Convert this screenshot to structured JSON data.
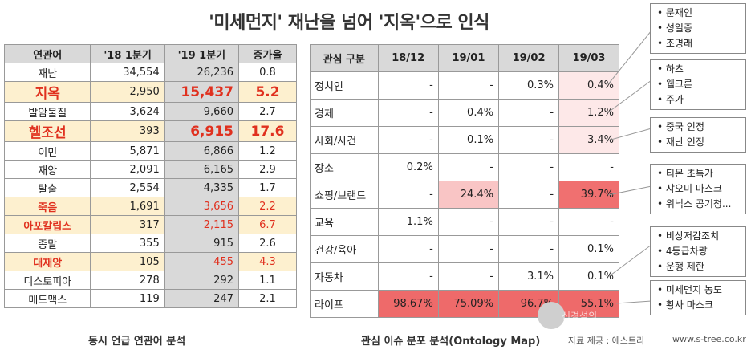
{
  "title": "'미세먼지' 재난을 넘어 '지옥'으로 인식",
  "left_table": {
    "headers": [
      "연관어",
      "'18 1분기",
      "'19 1분기",
      "증가율"
    ],
    "rows": [
      {
        "kw": "재난",
        "q18": "34,554",
        "q19": "26,236",
        "inc": "0.8"
      },
      {
        "kw": "지옥",
        "q18": "2,950",
        "q19": "15,437",
        "inc": "5.2"
      },
      {
        "kw": "발암물질",
        "q18": "3,624",
        "q19": "9,660",
        "inc": "2.7"
      },
      {
        "kw": "헬조선",
        "q18": "393",
        "q19": "6,915",
        "inc": "17.6"
      },
      {
        "kw": "이민",
        "q18": "5,871",
        "q19": "6,866",
        "inc": "1.2"
      },
      {
        "kw": "재앙",
        "q18": "2,091",
        "q19": "6,165",
        "inc": "2.9"
      },
      {
        "kw": "탈출",
        "q18": "2,554",
        "q19": "4,335",
        "inc": "1.7"
      },
      {
        "kw": "죽음",
        "q18": "1,691",
        "q19": "3,656",
        "inc": "2.2"
      },
      {
        "kw": "아포칼립스",
        "q18": "317",
        "q19": "2,115",
        "inc": "6.7"
      },
      {
        "kw": "종말",
        "q18": "355",
        "q19": "915",
        "inc": "2.6"
      },
      {
        "kw": "대재앙",
        "q18": "105",
        "q19": "455",
        "inc": "4.3"
      },
      {
        "kw": "디스토피아",
        "q18": "278",
        "q19": "292",
        "inc": "1.1"
      },
      {
        "kw": "매드맥스",
        "q18": "119",
        "q19": "247",
        "inc": "2.1"
      }
    ]
  },
  "right_table": {
    "headers": [
      "관심 구분",
      "18/12",
      "19/01",
      "19/02",
      "19/03"
    ],
    "rows": [
      {
        "cat": "정치인",
        "v": [
          "-",
          "-",
          "0.3%",
          "0.4%"
        ]
      },
      {
        "cat": "경제",
        "v": [
          "-",
          "0.4%",
          "-",
          "1.2%"
        ]
      },
      {
        "cat": "사회/사건",
        "v": [
          "-",
          "0.1%",
          "-",
          "3.4%"
        ]
      },
      {
        "cat": "장소",
        "v": [
          "0.2%",
          "-",
          "-",
          "-"
        ]
      },
      {
        "cat": "쇼핑/브랜드",
        "v": [
          "-",
          "24.4%",
          "-",
          "39.7%"
        ]
      },
      {
        "cat": "교육",
        "v": [
          "1.1%",
          "-",
          "-",
          "-"
        ]
      },
      {
        "cat": "건강/육아",
        "v": [
          "-",
          "-",
          "-",
          "0.1%"
        ]
      },
      {
        "cat": "자동차",
        "v": [
          "-",
          "-",
          "3.1%",
          "0.1%"
        ]
      },
      {
        "cat": "라이프",
        "v": [
          "98.67%",
          "75.09%",
          "96.7%",
          "55.1%"
        ]
      }
    ]
  },
  "callouts": [
    [
      "• 문재인",
      "• 성일종",
      "• 조명래"
    ],
    [
      "• 하츠",
      "• 웰크론",
      "• 주가"
    ],
    [
      "• 중국 인정",
      "• 재난 인정"
    ],
    [
      "• 티몬 초특가",
      "• 샤오미 마스크",
      "• 위닉스 공기청..."
    ],
    [
      "• 비상저감조치",
      "• 4등급차량",
      "• 운행 제한"
    ],
    [
      "• 미세먼지 농도",
      "• 황사 마스크"
    ]
  ],
  "caption_left": "동시 언급 연관어 분석",
  "caption_right": "관심 이슈 분포 분석(Ontology Map)",
  "source": "자료 제공 : 에스트리",
  "site": "www.s-tree.co.kr",
  "watermark": "신경석의"
}
